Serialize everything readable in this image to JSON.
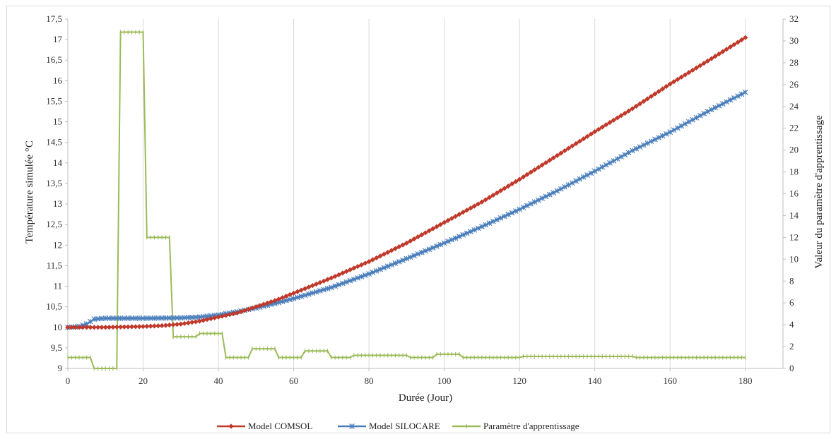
{
  "chart_data": {
    "type": "line",
    "title": "",
    "xlabel": "Durée (Jour)",
    "ylabel_left": "Température simulée °C",
    "ylabel_right": "Valeur du paramètre d'apprentissage",
    "xlim": [
      0,
      190
    ],
    "ylim_left": [
      9,
      17.5
    ],
    "ylim_right": [
      0,
      32
    ],
    "x_ticks": [
      "0",
      "20",
      "40",
      "60",
      "80",
      "100",
      "120",
      "140",
      "160",
      "180"
    ],
    "y_left_ticks": [
      "9",
      "9,5",
      "10",
      "10,5",
      "11",
      "11,5",
      "12",
      "12,5",
      "13",
      "13,5",
      "14",
      "14,5",
      "15",
      "15,5",
      "16",
      "16,5",
      "17",
      "17,5"
    ],
    "y_right_ticks": [
      "0",
      "2",
      "4",
      "6",
      "8",
      "10",
      "12",
      "14",
      "16",
      "18",
      "20",
      "22",
      "24",
      "26",
      "28",
      "30",
      "32"
    ],
    "grid": "vertical",
    "legend_position": "bottom",
    "series": [
      {
        "name": "Model COMSOL",
        "axis": "left",
        "color": "#c0392b",
        "marker": "diamond",
        "points": [
          [
            0,
            10.0
          ],
          [
            10,
            10.0
          ],
          [
            20,
            10.02
          ],
          [
            25,
            10.04
          ],
          [
            30,
            10.08
          ],
          [
            35,
            10.15
          ],
          [
            40,
            10.25
          ],
          [
            45,
            10.35
          ],
          [
            50,
            10.5
          ],
          [
            55,
            10.65
          ],
          [
            60,
            10.83
          ],
          [
            70,
            11.2
          ],
          [
            80,
            11.6
          ],
          [
            90,
            12.05
          ],
          [
            100,
            12.55
          ],
          [
            110,
            13.05
          ],
          [
            120,
            13.6
          ],
          [
            130,
            14.18
          ],
          [
            140,
            14.76
          ],
          [
            150,
            15.32
          ],
          [
            160,
            15.92
          ],
          [
            170,
            16.48
          ],
          [
            180,
            17.05
          ]
        ]
      },
      {
        "name": "Model SILOCARE",
        "axis": "left",
        "color": "#4a7ebb",
        "marker": "star",
        "points": [
          [
            0,
            10.0
          ],
          [
            3,
            10.02
          ],
          [
            5,
            10.08
          ],
          [
            7,
            10.2
          ],
          [
            10,
            10.22
          ],
          [
            20,
            10.22
          ],
          [
            30,
            10.23
          ],
          [
            35,
            10.25
          ],
          [
            40,
            10.3
          ],
          [
            45,
            10.38
          ],
          [
            50,
            10.47
          ],
          [
            55,
            10.58
          ],
          [
            60,
            10.7
          ],
          [
            70,
            10.97
          ],
          [
            80,
            11.3
          ],
          [
            90,
            11.67
          ],
          [
            100,
            12.05
          ],
          [
            110,
            12.45
          ],
          [
            120,
            12.87
          ],
          [
            130,
            13.32
          ],
          [
            140,
            13.8
          ],
          [
            150,
            14.3
          ],
          [
            160,
            14.75
          ],
          [
            170,
            15.25
          ],
          [
            180,
            15.72
          ]
        ]
      },
      {
        "name": "Paramètre d'apprentissage",
        "axis": "right",
        "color": "#9bbb59",
        "marker": "plus",
        "points": [
          [
            0,
            1.0
          ],
          [
            6,
            1.0
          ],
          [
            7,
            0.0
          ],
          [
            13,
            0.0
          ],
          [
            14,
            30.8
          ],
          [
            20,
            30.8
          ],
          [
            21,
            12.0
          ],
          [
            27,
            12.0
          ],
          [
            28,
            2.9
          ],
          [
            34,
            2.9
          ],
          [
            35,
            3.2
          ],
          [
            41,
            3.2
          ],
          [
            42,
            1.0
          ],
          [
            48,
            1.0
          ],
          [
            49,
            1.8
          ],
          [
            55,
            1.8
          ],
          [
            56,
            1.0
          ],
          [
            62,
            1.0
          ],
          [
            63,
            1.6
          ],
          [
            69,
            1.6
          ],
          [
            70,
            1.0
          ],
          [
            75,
            1.0
          ],
          [
            76,
            1.2
          ],
          [
            90,
            1.2
          ],
          [
            91,
            1.0
          ],
          [
            97,
            1.0
          ],
          [
            98,
            1.3
          ],
          [
            104,
            1.3
          ],
          [
            105,
            1.0
          ],
          [
            120,
            1.0
          ],
          [
            121,
            1.1
          ],
          [
            150,
            1.1
          ],
          [
            151,
            1.0
          ],
          [
            180,
            1.0
          ]
        ]
      }
    ]
  }
}
